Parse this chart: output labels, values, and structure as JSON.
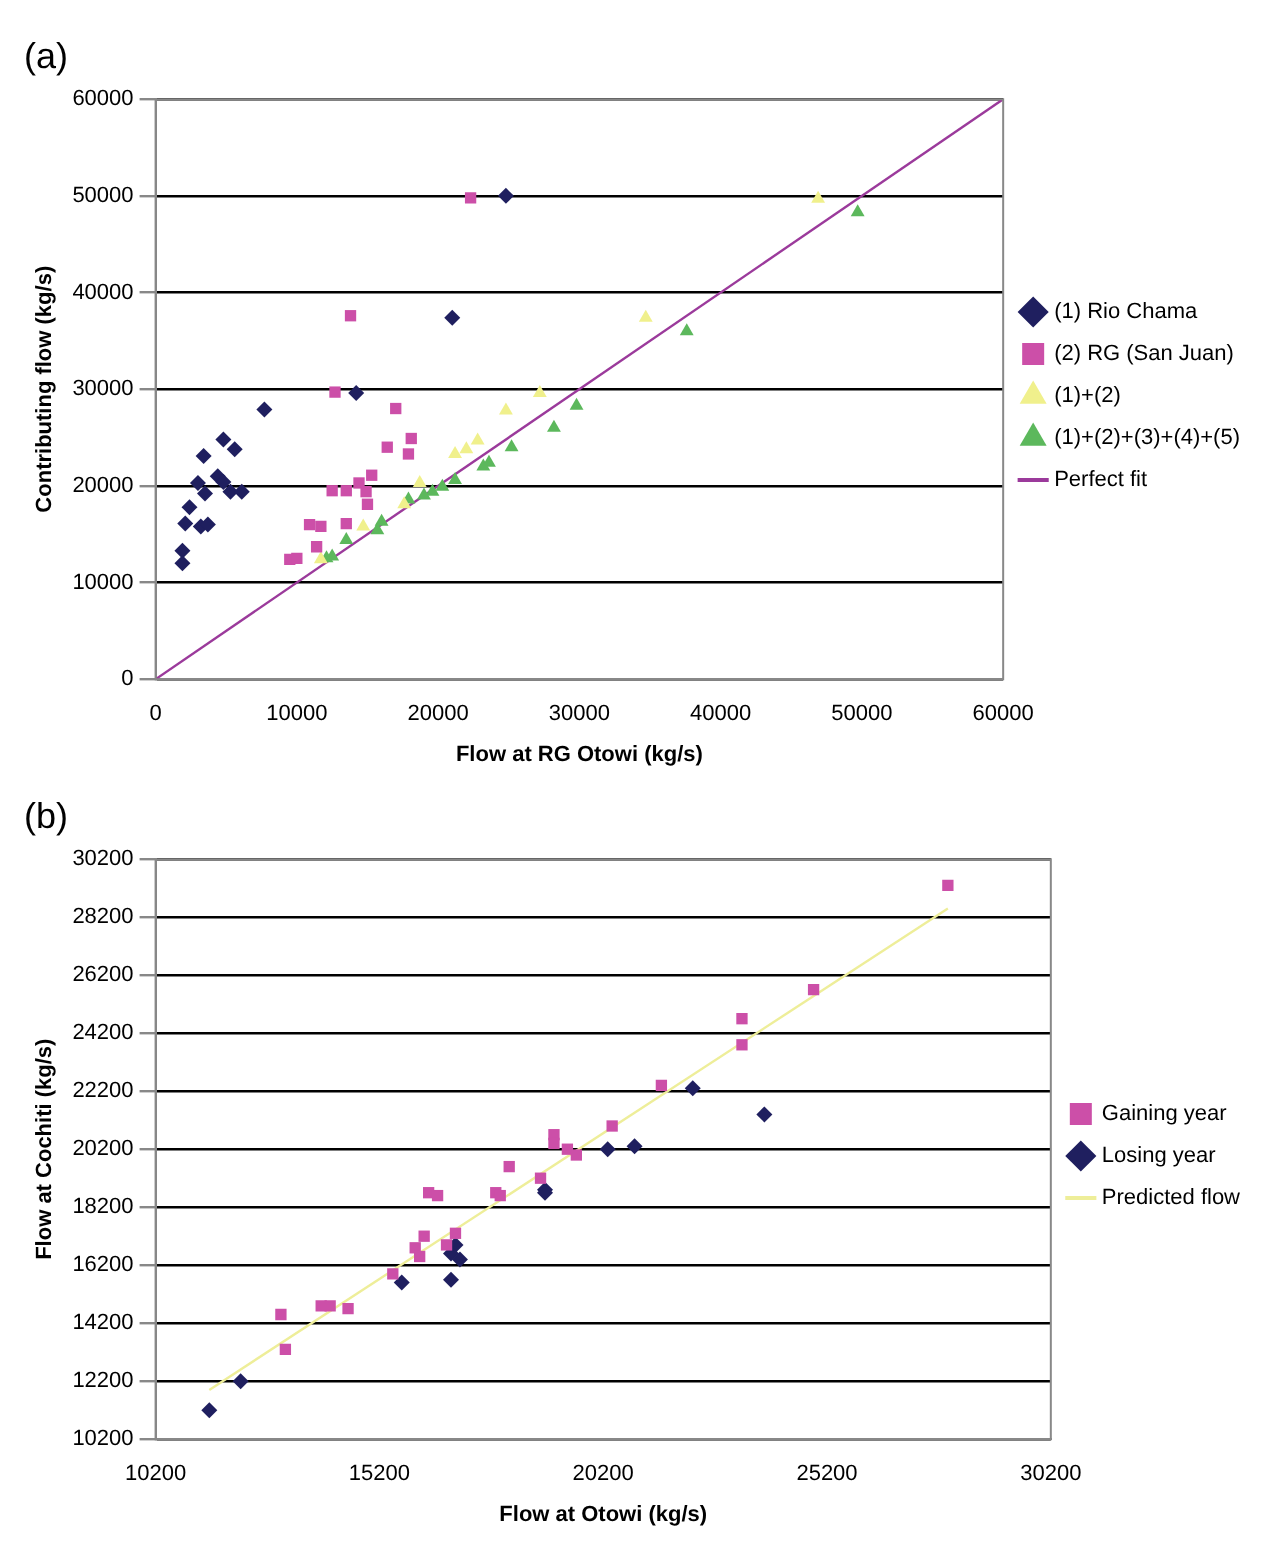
{
  "chart_data": [
    {
      "type": "scatter",
      "title": "(a)",
      "xlabel": "Flow at RG Otowi (kg/s)",
      "ylabel": "Contributing flow (kg/s)",
      "xlim": [
        0,
        60000
      ],
      "ylim": [
        0,
        60000
      ],
      "xticks": [
        0,
        10000,
        20000,
        30000,
        40000,
        50000,
        60000
      ],
      "yticks": [
        0,
        10000,
        20000,
        30000,
        40000,
        50000,
        60000
      ],
      "grid": "y",
      "legend": "right",
      "series": [
        {
          "name": "(1) Rio Chama",
          "color": "#1f1f5f",
          "marker": "diamond",
          "x": [
            24800,
            21000,
            14200,
            7700,
            4800,
            5600,
            3400,
            4400,
            3000,
            4800,
            3500,
            5300,
            6100,
            2400,
            2100,
            3200,
            3700,
            1900,
            1900
          ],
          "values": [
            50000,
            37400,
            29600,
            27900,
            24800,
            23800,
            23100,
            21000,
            20300,
            20400,
            19200,
            19400,
            19400,
            17800,
            16100,
            15800,
            16000,
            13300,
            12000
          ]
        },
        {
          "name": "(2) RG (San Juan)",
          "color": "#cc4fa8",
          "marker": "square",
          "x": [
            22300,
            13800,
            12700,
            17000,
            18100,
            16400,
            17900,
            15300,
            14400,
            12500,
            13500,
            14900,
            15000,
            10900,
            11700,
            13500,
            11400,
            9500,
            10000
          ],
          "values": [
            49800,
            37600,
            29700,
            28000,
            24900,
            24000,
            23300,
            21100,
            20300,
            19500,
            19500,
            19400,
            18100,
            16000,
            15800,
            16100,
            13700,
            12400,
            12500
          ]
        },
        {
          "name": "(1)+(2)",
          "color": "#f0f08c",
          "marker": "triangle",
          "x": [
            46900,
            34700,
            27200,
            24800,
            22800,
            22000,
            21200,
            18700,
            17600,
            14700,
            11700
          ],
          "values": [
            49700,
            37400,
            29600,
            27800,
            24700,
            23800,
            23300,
            20300,
            18100,
            15800,
            12400
          ]
        },
        {
          "name": "(1)+(2)+(3)+(4)+(5)",
          "color": "#5cb85c",
          "marker": "triangle",
          "x": [
            49700,
            37600,
            29800,
            28200,
            25200,
            23600,
            23200,
            21200,
            20300,
            19600,
            19000,
            17900,
            16000,
            15700,
            13500,
            12500,
            12100
          ],
          "values": [
            48300,
            36000,
            28300,
            26000,
            24000,
            22400,
            22000,
            20600,
            19900,
            19400,
            19000,
            18600,
            16300,
            15400,
            14400,
            12700,
            12500
          ]
        },
        {
          "name": "Perfect fit",
          "type": "line",
          "color": "#9b3a9b",
          "marker": "none",
          "x": [
            0,
            60000
          ],
          "values": [
            0,
            60000
          ]
        }
      ]
    },
    {
      "type": "scatter",
      "title": "(b)",
      "xlabel": "Flow at Otowi (kg/s)",
      "ylabel": "Flow at Cochiti (kg/s)",
      "xlim": [
        10200,
        30200
      ],
      "ylim": [
        10200,
        30200
      ],
      "xticks": [
        10200,
        15200,
        20200,
        25200,
        30200
      ],
      "yticks": [
        10200,
        12200,
        14200,
        16200,
        18200,
        20200,
        22200,
        24200,
        26200,
        28200,
        30200
      ],
      "grid": "y",
      "legend": "right",
      "series": [
        {
          "name": "Gaining year",
          "color": "#cc4fa8",
          "marker": "square",
          "x": [
            27900,
            24900,
            23300,
            23300,
            21500,
            20400,
            19100,
            19100,
            19400,
            19600,
            18100,
            18800,
            17800,
            17900,
            16300,
            16500,
            16200,
            16000,
            16100,
            16700,
            16900,
            15500,
            13900,
            14100,
            14500,
            13000,
            13100
          ],
          "values": [
            29300,
            25700,
            24700,
            23800,
            22400,
            21000,
            20700,
            20400,
            20200,
            20000,
            19600,
            19200,
            18700,
            18600,
            18700,
            18600,
            17200,
            16800,
            16500,
            16900,
            17300,
            15900,
            14800,
            14800,
            14700,
            14500,
            13300
          ]
        },
        {
          "name": "Losing year",
          "color": "#1f1f5f",
          "marker": "diamond",
          "x": [
            22200,
            23800,
            20900,
            20300,
            18900,
            18900,
            16900,
            16800,
            17000,
            16800,
            15700,
            12100,
            11400
          ],
          "values": [
            22300,
            21400,
            20300,
            20200,
            18800,
            18700,
            16900,
            16600,
            16400,
            15700,
            15600,
            12200,
            11200
          ]
        },
        {
          "name": "Predicted flow",
          "type": "line",
          "color": "#eeee99",
          "marker": "none",
          "x": [
            11400,
            27900
          ],
          "values": [
            11900,
            28500
          ]
        }
      ]
    }
  ]
}
